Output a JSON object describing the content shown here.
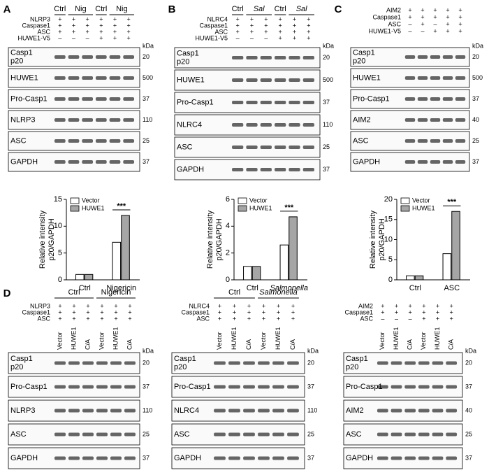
{
  "panels": [
    {
      "letter": "A",
      "groups": [
        {
          "label": "Ctrl",
          "lanes": [
            0
          ]
        },
        {
          "label": "Nig",
          "lanes": [
            1,
            2
          ]
        },
        {
          "label": "Ctrl",
          "lanes": [
            3
          ]
        },
        {
          "label": "Nig",
          "lanes": [
            4,
            5
          ]
        }
      ],
      "matrix": [
        {
          "label": "NLRP3",
          "signs": [
            "+",
            "+",
            "+",
            "+",
            "+",
            "+"
          ]
        },
        {
          "label": "Caspase1",
          "signs": [
            "+",
            "+",
            "+",
            "+",
            "+",
            "+"
          ]
        },
        {
          "label": "ASC",
          "signs": [
            "+",
            "+",
            "+",
            "+",
            "+",
            "+"
          ]
        },
        {
          "label": "HUWE1-V5",
          "signs": [
            "–",
            "–",
            "–",
            "+",
            "+",
            "+"
          ]
        }
      ],
      "blots": [
        {
          "label": [
            "Casp1",
            "p20"
          ],
          "markers": [
            "kDa",
            "20"
          ]
        },
        {
          "label": [
            "HUWE1"
          ],
          "markers": [
            "500"
          ]
        },
        {
          "label": [
            "Pro-Casp1"
          ],
          "markers": [
            "37"
          ]
        },
        {
          "label": [
            "NLRP3"
          ],
          "markers": [
            "110"
          ]
        },
        {
          "label": [
            "ASC"
          ],
          "markers": [
            "25"
          ]
        },
        {
          "label": [
            "GAPDH"
          ],
          "markers": [
            "37"
          ]
        }
      ]
    },
    {
      "letter": "B",
      "groups": [
        {
          "label": "Ctrl",
          "lanes": [
            0
          ]
        },
        {
          "label": "Sal",
          "lanes": [
            1,
            2
          ],
          "italic": true
        },
        {
          "label": "Ctrl",
          "lanes": [
            3
          ]
        },
        {
          "label": "Sal",
          "lanes": [
            4,
            5
          ],
          "italic": true
        }
      ],
      "matrix": [
        {
          "label": "NLRC4",
          "signs": [
            "+",
            "+",
            "+",
            "+",
            "+",
            "+"
          ]
        },
        {
          "label": "Caspase1",
          "signs": [
            "+",
            "+",
            "+",
            "+",
            "+",
            "+"
          ]
        },
        {
          "label": "ASC",
          "signs": [
            "+",
            "+",
            "+",
            "+",
            "+",
            "+"
          ]
        },
        {
          "label": "HUWE1-V5",
          "signs": [
            "–",
            "–",
            "–",
            "+",
            "+",
            "+"
          ]
        }
      ],
      "blots": [
        {
          "label": [
            "Casp1",
            "p20"
          ],
          "markers": [
            "kDa",
            "20"
          ]
        },
        {
          "label": [
            "HUWE1"
          ],
          "markers": [
            "500"
          ]
        },
        {
          "label": [
            "Pro-Casp1"
          ],
          "markers": [
            "37"
          ]
        },
        {
          "label": [
            "NLRC4"
          ],
          "markers": [
            "110"
          ]
        },
        {
          "label": [
            "ASC"
          ],
          "markers": [
            "25"
          ]
        },
        {
          "label": [
            "GAPDH"
          ],
          "markers": [
            "37"
          ]
        }
      ]
    },
    {
      "letter": "C",
      "matrix": [
        {
          "label": "AIM2",
          "signs": [
            "+",
            "+",
            "+",
            "+",
            "+"
          ]
        },
        {
          "label": "Caspase1",
          "signs": [
            "+",
            "+",
            "+",
            "+",
            "+"
          ]
        },
        {
          "label": "ASC",
          "signs": [
            "–",
            "+",
            "–",
            "+",
            "+"
          ]
        },
        {
          "label": "HUWE1-V5",
          "signs": [
            "–",
            "–",
            "+",
            "+",
            "+"
          ]
        }
      ],
      "blots": [
        {
          "label": [
            "Casp1",
            "p20"
          ],
          "markers": [
            "kDa",
            "20"
          ]
        },
        {
          "label": [
            "HUWE1"
          ],
          "markers": [
            "500"
          ]
        },
        {
          "label": [
            "Pro-Casp1"
          ],
          "markers": [
            "37"
          ]
        },
        {
          "label": [
            "AIM2"
          ],
          "markers": [
            "40"
          ]
        },
        {
          "label": [
            "ASC"
          ],
          "markers": [
            "25"
          ]
        },
        {
          "label": [
            "GAPDH"
          ],
          "markers": [
            "37"
          ]
        }
      ]
    },
    {
      "letter": "D",
      "groups": [
        {
          "label": "Ctrl",
          "lanes": [
            0,
            1,
            2
          ]
        },
        {
          "label": "Nigericin",
          "lanes": [
            3,
            4,
            5
          ]
        }
      ],
      "matrix": [
        {
          "label": "NLRP3",
          "signs": [
            "+",
            "+",
            "+",
            "+",
            "+",
            "+"
          ]
        },
        {
          "label": "Caspase1",
          "signs": [
            "+",
            "+",
            "+",
            "+",
            "+",
            "+"
          ]
        },
        {
          "label": "ASC",
          "signs": [
            "+",
            "+",
            "+",
            "+",
            "+",
            "+"
          ]
        }
      ],
      "lane_labels": [
        "Vector",
        "HUWE1",
        "C/A",
        "Vector",
        "HUWE1",
        "C/A"
      ],
      "blots": [
        {
          "label": [
            "Casp1",
            "p20"
          ],
          "markers": [
            "kDa",
            "20"
          ]
        },
        {
          "label": [
            "Pro-Casp1"
          ],
          "markers": [
            "37"
          ]
        },
        {
          "label": [
            "NLRP3"
          ],
          "markers": [
            "110"
          ]
        },
        {
          "label": [
            "ASC"
          ],
          "markers": [
            "25"
          ]
        },
        {
          "label": [
            "GAPDH"
          ],
          "markers": [
            "37"
          ]
        }
      ]
    },
    {
      "groups": [
        {
          "label": "Ctrl",
          "lanes": [
            0,
            1,
            2
          ]
        },
        {
          "label": "Salmonella",
          "lanes": [
            3,
            4,
            5
          ],
          "italic": true
        }
      ],
      "matrix": [
        {
          "label": "NLRC4",
          "signs": [
            "+",
            "+",
            "+",
            "+",
            "+",
            "+"
          ]
        },
        {
          "label": "Caspase1",
          "signs": [
            "+",
            "+",
            "+",
            "+",
            "+",
            "+"
          ]
        },
        {
          "label": "ASC",
          "signs": [
            "+",
            "+",
            "+",
            "+",
            "+",
            "+"
          ]
        }
      ],
      "lane_labels": [
        "Vector",
        "HUWE1",
        "C/A",
        "Vector",
        "HUWE1",
        "C/A"
      ],
      "blots": [
        {
          "label": [
            "Casp1",
            "p20"
          ],
          "markers": [
            "kDa",
            "20"
          ]
        },
        {
          "label": [
            "Pro-Casp1"
          ],
          "markers": [
            "37"
          ]
        },
        {
          "label": [
            "NLRC4"
          ],
          "markers": [
            "110"
          ]
        },
        {
          "label": [
            "ASC"
          ],
          "markers": [
            "25"
          ]
        },
        {
          "label": [
            "GAPDH"
          ],
          "markers": [
            "37"
          ]
        }
      ]
    },
    {
      "matrix": [
        {
          "label": "AIM2",
          "signs": [
            "+",
            "+",
            "+",
            "+",
            "+",
            "+"
          ]
        },
        {
          "label": "Caspase1",
          "signs": [
            "+",
            "+",
            "+",
            "+",
            "+",
            "+"
          ]
        },
        {
          "label": "ASC",
          "signs": [
            "–",
            "–",
            "–",
            "+",
            "+",
            "+"
          ]
        }
      ],
      "lane_labels": [
        "Vector",
        "HUWE1",
        "C/A",
        "Vector",
        "HUWE1",
        "C/A"
      ],
      "blots": [
        {
          "label": [
            "Casp1",
            "p20"
          ],
          "markers": [
            "kDa",
            "20"
          ]
        },
        {
          "label": [
            "Pro-Casp1"
          ],
          "markers": [
            "37"
          ]
        },
        {
          "label": [
            "AIM2"
          ],
          "markers": [
            "40"
          ]
        },
        {
          "label": [
            "ASC"
          ],
          "markers": [
            "25"
          ]
        },
        {
          "label": [
            "GAPDH"
          ],
          "markers": [
            "37"
          ]
        }
      ]
    }
  ],
  "chart_data": [
    {
      "type": "bar",
      "ylabel": [
        "Relative intensity",
        "p20/GAPDH"
      ],
      "categories": [
        "Ctrl",
        "Nigericin"
      ],
      "series": [
        {
          "name": "Vector",
          "color": "#ffffff",
          "values": [
            1,
            7
          ]
        },
        {
          "name": "HUWE1",
          "color": "#a6a6a6",
          "values": [
            1,
            12
          ]
        }
      ],
      "ylim": [
        0,
        15
      ],
      "yticks": [
        0,
        5,
        10,
        15
      ],
      "annotation": "***",
      "legend": "top-left"
    },
    {
      "type": "bar",
      "ylabel": [
        "Relative intensity",
        "p20/GAPDH"
      ],
      "categories": [
        "Ctrl",
        "Salmonella"
      ],
      "italic_categories": [
        false,
        true
      ],
      "series": [
        {
          "name": "Vector",
          "color": "#ffffff",
          "values": [
            1,
            2.6
          ]
        },
        {
          "name": "HUWE1",
          "color": "#a6a6a6",
          "values": [
            1,
            4.7
          ]
        }
      ],
      "ylim": [
        0,
        6
      ],
      "yticks": [
        0,
        2,
        4,
        6
      ],
      "annotation": "***",
      "legend": "top-left"
    },
    {
      "type": "bar",
      "ylabel": [
        "Relative intensity",
        "p20/GAPDH"
      ],
      "categories": [
        "Ctrl",
        "ASC"
      ],
      "series": [
        {
          "name": "Vector",
          "color": "#ffffff",
          "values": [
            1,
            6.5
          ]
        },
        {
          "name": "HUWE1",
          "color": "#a6a6a6",
          "values": [
            1,
            17
          ]
        }
      ],
      "ylim": [
        0,
        20
      ],
      "yticks": [
        0,
        5,
        10,
        15,
        20
      ],
      "annotation": "***",
      "legend": "top-left"
    }
  ]
}
